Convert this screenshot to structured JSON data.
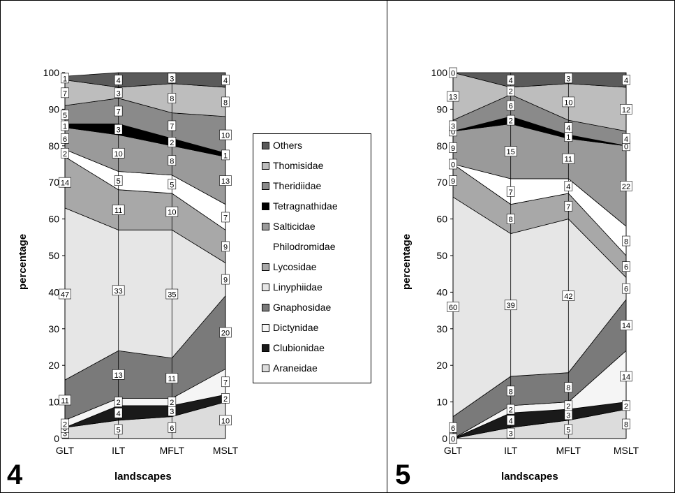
{
  "panels": [
    {
      "number": "4",
      "xlabel": "landscapes",
      "ylabel": "percentage"
    },
    {
      "number": "5",
      "xlabel": "landscapes",
      "ylabel": "percentage"
    }
  ],
  "legend": [
    {
      "name": "Others",
      "color": "#5a5a5a"
    },
    {
      "name": "Thomisidae",
      "color": "#bdbdbd"
    },
    {
      "name": "Theridiidae",
      "color": "#8a8a8a"
    },
    {
      "name": "Tetragnathidae",
      "color": "#000000"
    },
    {
      "name": "Salticidae",
      "color": "#9a9a9a"
    },
    {
      "name": "Philodromidae",
      "color": "#ffffff"
    },
    {
      "name": "Lycosidae",
      "color": "#a8a8a8"
    },
    {
      "name": "Linyphiidae",
      "color": "#e6e6e6"
    },
    {
      "name": "Gnaphosidae",
      "color": "#7a7a7a"
    },
    {
      "name": "Dictynidae",
      "color": "#f5f5f5"
    },
    {
      "name": "Clubionidae",
      "color": "#1a1a1a"
    },
    {
      "name": "Araneidae",
      "color": "#dcdcdc"
    }
  ],
  "chart_data": [
    {
      "type": "area",
      "stacked": true,
      "categories": [
        "GLT",
        "ILT",
        "MFLT",
        "MSLT"
      ],
      "xlabel": "landscapes",
      "ylabel": "percentage",
      "ylim": [
        0,
        100
      ],
      "yticks": [
        "0",
        "10",
        "20",
        "30",
        "40",
        "50",
        "60",
        "70",
        "80",
        "90",
        "100"
      ],
      "series": [
        {
          "name": "Araneidae",
          "values": [
            3,
            5,
            6,
            10
          ]
        },
        {
          "name": "Clubionidae",
          "values": [
            0,
            4,
            3,
            2
          ]
        },
        {
          "name": "Dictynidae",
          "values": [
            2,
            2,
            2,
            7
          ]
        },
        {
          "name": "Gnaphosidae",
          "values": [
            11,
            13,
            11,
            20
          ]
        },
        {
          "name": "Linyphiidae",
          "values": [
            47,
            33,
            35,
            9
          ]
        },
        {
          "name": "Lycosidae",
          "values": [
            14,
            11,
            10,
            9
          ]
        },
        {
          "name": "Philodromidae",
          "values": [
            2,
            5,
            5,
            7
          ]
        },
        {
          "name": "Salticidae",
          "values": [
            6,
            10,
            8,
            13
          ]
        },
        {
          "name": "Tetragnathidae",
          "values": [
            1,
            3,
            2,
            1
          ]
        },
        {
          "name": "Theridiidae",
          "values": [
            5,
            7,
            7,
            10
          ]
        },
        {
          "name": "Thomisidae",
          "values": [
            7,
            3,
            8,
            8
          ]
        },
        {
          "name": "Others",
          "values": [
            1,
            4,
            3,
            4
          ]
        }
      ]
    },
    {
      "type": "area",
      "stacked": true,
      "categories": [
        "GLT",
        "ILT",
        "MFLT",
        "MSLT"
      ],
      "xlabel": "landscapes",
      "ylabel": "percentage",
      "ylim": [
        0,
        100
      ],
      "yticks": [
        "0",
        "10",
        "20",
        "30",
        "40",
        "50",
        "60",
        "70",
        "80",
        "90",
        "100"
      ],
      "series": [
        {
          "name": "Araneidae",
          "values": [
            0,
            3,
            5,
            8
          ]
        },
        {
          "name": "Clubionidae",
          "values": [
            0,
            4,
            3,
            2
          ]
        },
        {
          "name": "Dictynidae",
          "values": [
            0,
            2,
            2,
            14
          ]
        },
        {
          "name": "Gnaphosidae",
          "values": [
            6,
            8,
            8,
            14
          ]
        },
        {
          "name": "Linyphiidae",
          "values": [
            60,
            39,
            42,
            6
          ]
        },
        {
          "name": "Lycosidae",
          "values": [
            9,
            8,
            7,
            6
          ]
        },
        {
          "name": "Philodromidae",
          "values": [
            0,
            7,
            4,
            8
          ]
        },
        {
          "name": "Salticidae",
          "values": [
            9,
            15,
            11,
            22
          ]
        },
        {
          "name": "Tetragnathidae",
          "values": [
            0,
            2,
            1,
            0
          ]
        },
        {
          "name": "Theridiidae",
          "values": [
            3,
            6,
            4,
            4
          ]
        },
        {
          "name": "Thomisidae",
          "values": [
            13,
            2,
            10,
            12
          ]
        },
        {
          "name": "Others",
          "values": [
            0,
            4,
            3,
            4
          ]
        }
      ]
    }
  ]
}
